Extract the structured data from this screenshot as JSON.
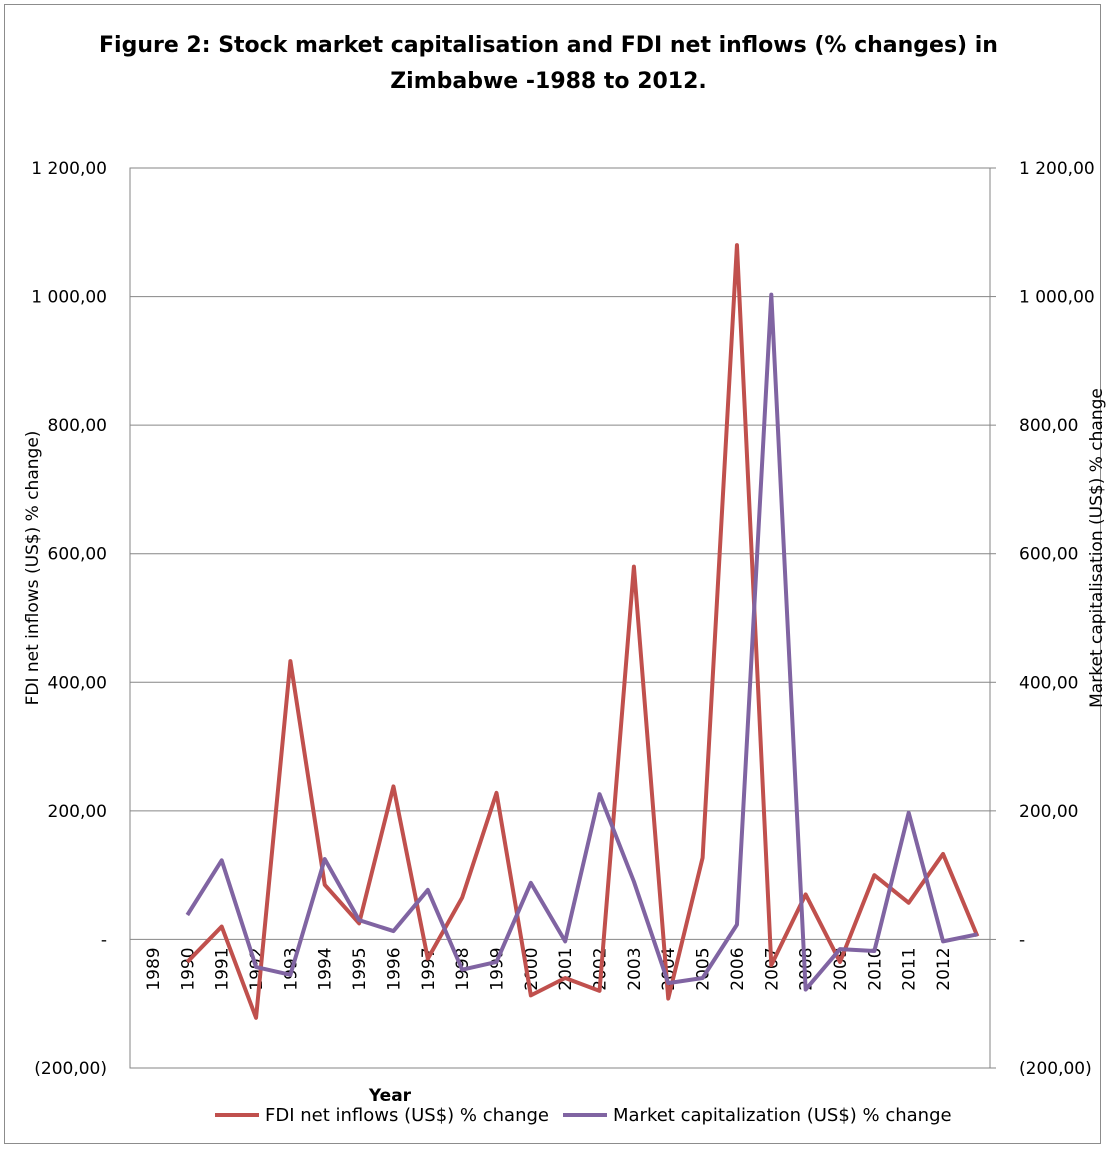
{
  "title_lines": [
    "Figure 2: Stock market capitalisation and FDI net inflows (% changes) in",
    "Zimbabwe -1988 to 2012."
  ],
  "chart_data": {
    "type": "line",
    "title": "Figure 2: Stock market capitalisation and FDI net inflows (% changes) in Zimbabwe -1988 to 2012.",
    "xlabel": "Year",
    "ylabel_left": "FDI net inflows (US$) % change)",
    "ylabel_right": "Market capitalisation (US$)  % change",
    "ylim": [
      -200,
      1200
    ],
    "y_ticks": [
      1200,
      1000,
      800,
      600,
      400,
      200,
      0,
      -200
    ],
    "y_tick_labels": [
      "1 200,00",
      "1 000,00",
      "800,00",
      "600,00",
      "400,00",
      "200,00",
      "-",
      "(200,00)"
    ],
    "x_tick_labels": [
      "1989",
      "1990",
      "1991",
      "1992",
      "1993",
      "1994",
      "1995",
      "1996",
      "1997",
      "1998",
      "1999",
      "2000",
      "2001",
      "2002",
      "2003",
      "2004",
      "2005",
      "2006",
      "2007",
      "2008",
      "2009",
      "2010",
      "2011",
      "2012"
    ],
    "grid": true,
    "legend_position": "bottom",
    "series": [
      {
        "name": "FDI net inflows (US$) % change",
        "color": "#c0504d",
        "values": [
          -35,
          20,
          -122,
          433,
          85,
          25,
          238,
          -30,
          65,
          228,
          -87,
          -60,
          -80,
          580,
          -92,
          127,
          1080,
          -40,
          70,
          -35,
          100,
          57,
          133,
          5
        ]
      },
      {
        "name": "Market capitalization (US$) % change",
        "color": "#8064a2",
        "values": [
          38,
          123,
          -43,
          -55,
          125,
          30,
          13,
          77,
          -47,
          -35,
          88,
          -3,
          226,
          90,
          -68,
          -60,
          23,
          1003,
          -78,
          -15,
          -18,
          197,
          -3,
          8
        ]
      }
    ]
  }
}
